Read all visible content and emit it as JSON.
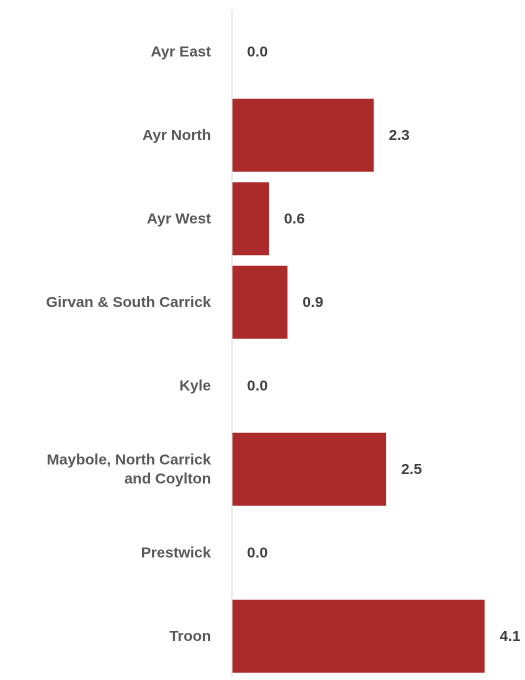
{
  "chart_data": {
    "type": "bar",
    "orientation": "horizontal",
    "categories": [
      [
        "Ayr East"
      ],
      [
        "Ayr North"
      ],
      [
        "Ayr West"
      ],
      [
        "Girvan & South Carrick"
      ],
      [
        "Kyle"
      ],
      [
        "Maybole, North Carrick",
        "and Coylton"
      ],
      [
        "Prestwick"
      ],
      [
        "Troon"
      ]
    ],
    "values": [
      0.0,
      2.3,
      0.6,
      0.9,
      0.0,
      2.5,
      0.0,
      4.1
    ],
    "value_labels": [
      "0.0",
      "2.3",
      "0.6",
      "0.9",
      "0.0",
      "2.5",
      "0.0",
      "4.1"
    ],
    "title": "",
    "xlabel": "",
    "ylabel": "",
    "xlim": [
      0,
      4.3
    ],
    "grid": false,
    "legend": "none",
    "bar_color": "#ab2a2a",
    "axis_color": "#d9d9d9"
  }
}
